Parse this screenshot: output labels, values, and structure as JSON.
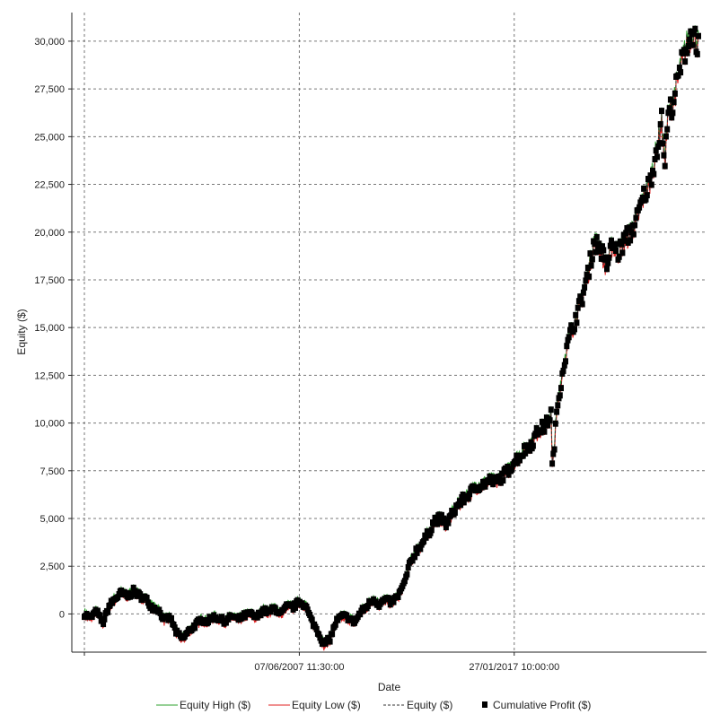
{
  "chart_data": {
    "type": "line",
    "xlabel": "Date",
    "ylabel": "Equity ($)",
    "ylim": [
      -2000,
      31500
    ],
    "grid": true,
    "legend_position": "bottom",
    "y_ticks": [
      0,
      2500,
      5000,
      7500,
      10000,
      12500,
      15000,
      17500,
      20000,
      22500,
      25000,
      27500,
      30000
    ],
    "y_tick_labels": [
      "0",
      "2,500",
      "5,000",
      "7,500",
      "10,000",
      "12,500",
      "15,000",
      "17,500",
      "20,000",
      "22,500",
      "25,000",
      "27,500",
      "30,000"
    ],
    "x_tick_labels": [
      {
        "label": "07/06/2007 11:30:00",
        "t": 0.35
      },
      {
        "label": "27/01/2017 10:00:00",
        "t": 0.7
      }
    ],
    "x_grid": [
      0.0,
      0.35,
      0.7
    ],
    "series": [
      {
        "name": "Equity High ($)",
        "color": "#2ca02c",
        "style": "solid"
      },
      {
        "name": "Equity Low ($)",
        "color": "#e02020",
        "style": "solid"
      },
      {
        "name": "Equity ($)",
        "color": "#333333",
        "style": "dashed"
      },
      {
        "name": "Cumulative Profit ($)",
        "color": "#000000",
        "style": "square-markers"
      }
    ],
    "points": [
      {
        "t": 0.0,
        "y": 0
      },
      {
        "t": 0.01,
        "y": -200
      },
      {
        "t": 0.02,
        "y": 150
      },
      {
        "t": 0.03,
        "y": -500
      },
      {
        "t": 0.04,
        "y": 400
      },
      {
        "t": 0.05,
        "y": 800
      },
      {
        "t": 0.06,
        "y": 1100
      },
      {
        "t": 0.07,
        "y": 900
      },
      {
        "t": 0.08,
        "y": 1200
      },
      {
        "t": 0.09,
        "y": 950
      },
      {
        "t": 0.1,
        "y": 800
      },
      {
        "t": 0.11,
        "y": 350
      },
      {
        "t": 0.12,
        "y": 250
      },
      {
        "t": 0.13,
        "y": -300
      },
      {
        "t": 0.14,
        "y": -200
      },
      {
        "t": 0.15,
        "y": -1000
      },
      {
        "t": 0.16,
        "y": -1300
      },
      {
        "t": 0.17,
        "y": -900
      },
      {
        "t": 0.18,
        "y": -600
      },
      {
        "t": 0.19,
        "y": -300
      },
      {
        "t": 0.2,
        "y": -400
      },
      {
        "t": 0.21,
        "y": -150
      },
      {
        "t": 0.22,
        "y": -250
      },
      {
        "t": 0.23,
        "y": -400
      },
      {
        "t": 0.24,
        "y": -100
      },
      {
        "t": 0.25,
        "y": -300
      },
      {
        "t": 0.26,
        "y": -100
      },
      {
        "t": 0.27,
        "y": 0
      },
      {
        "t": 0.28,
        "y": -200
      },
      {
        "t": 0.29,
        "y": 200
      },
      {
        "t": 0.3,
        "y": 100
      },
      {
        "t": 0.31,
        "y": 300
      },
      {
        "t": 0.32,
        "y": 0
      },
      {
        "t": 0.33,
        "y": 400
      },
      {
        "t": 0.34,
        "y": 350
      },
      {
        "t": 0.35,
        "y": 650
      },
      {
        "t": 0.36,
        "y": 450
      },
      {
        "t": 0.37,
        "y": -350
      },
      {
        "t": 0.38,
        "y": -900
      },
      {
        "t": 0.39,
        "y": -1600
      },
      {
        "t": 0.4,
        "y": -1300
      },
      {
        "t": 0.41,
        "y": -400
      },
      {
        "t": 0.42,
        "y": -100
      },
      {
        "t": 0.43,
        "y": -200
      },
      {
        "t": 0.44,
        "y": -450
      },
      {
        "t": 0.45,
        "y": 100
      },
      {
        "t": 0.46,
        "y": 400
      },
      {
        "t": 0.47,
        "y": 800
      },
      {
        "t": 0.48,
        "y": 500
      },
      {
        "t": 0.49,
        "y": 750
      },
      {
        "t": 0.5,
        "y": 600
      },
      {
        "t": 0.51,
        "y": 900
      },
      {
        "t": 0.52,
        "y": 1500
      },
      {
        "t": 0.53,
        "y": 2600
      },
      {
        "t": 0.54,
        "y": 3300
      },
      {
        "t": 0.55,
        "y": 3700
      },
      {
        "t": 0.56,
        "y": 4200
      },
      {
        "t": 0.57,
        "y": 4900
      },
      {
        "t": 0.58,
        "y": 5000
      },
      {
        "t": 0.59,
        "y": 4700
      },
      {
        "t": 0.6,
        "y": 5300
      },
      {
        "t": 0.61,
        "y": 5800
      },
      {
        "t": 0.62,
        "y": 6100
      },
      {
        "t": 0.63,
        "y": 6400
      },
      {
        "t": 0.64,
        "y": 6700
      },
      {
        "t": 0.65,
        "y": 6800
      },
      {
        "t": 0.66,
        "y": 7000
      },
      {
        "t": 0.67,
        "y": 6900
      },
      {
        "t": 0.68,
        "y": 7200
      },
      {
        "t": 0.69,
        "y": 7500
      },
      {
        "t": 0.7,
        "y": 8000
      },
      {
        "t": 0.71,
        "y": 8300
      },
      {
        "t": 0.72,
        "y": 8700
      },
      {
        "t": 0.73,
        "y": 9000
      },
      {
        "t": 0.74,
        "y": 9700
      },
      {
        "t": 0.75,
        "y": 9800
      },
      {
        "t": 0.76,
        "y": 10500
      },
      {
        "t": 0.762,
        "y": 7500
      },
      {
        "t": 0.77,
        "y": 10800
      },
      {
        "t": 0.78,
        "y": 13000
      },
      {
        "t": 0.79,
        "y": 14500
      },
      {
        "t": 0.8,
        "y": 15500
      },
      {
        "t": 0.81,
        "y": 16500
      },
      {
        "t": 0.82,
        "y": 17800
      },
      {
        "t": 0.83,
        "y": 19500
      },
      {
        "t": 0.84,
        "y": 19200
      },
      {
        "t": 0.85,
        "y": 18200
      },
      {
        "t": 0.86,
        "y": 19400
      },
      {
        "t": 0.87,
        "y": 18900
      },
      {
        "t": 0.88,
        "y": 19600
      },
      {
        "t": 0.89,
        "y": 20000
      },
      {
        "t": 0.9,
        "y": 20700
      },
      {
        "t": 0.91,
        "y": 21800
      },
      {
        "t": 0.92,
        "y": 22500
      },
      {
        "t": 0.93,
        "y": 24000
      },
      {
        "t": 0.94,
        "y": 25800
      },
      {
        "t": 0.945,
        "y": 23500
      },
      {
        "t": 0.95,
        "y": 26000
      },
      {
        "t": 0.96,
        "y": 27000
      },
      {
        "t": 0.97,
        "y": 28500
      },
      {
        "t": 0.98,
        "y": 29700
      },
      {
        "t": 0.99,
        "y": 30500
      },
      {
        "t": 1.0,
        "y": 29800
      }
    ]
  }
}
